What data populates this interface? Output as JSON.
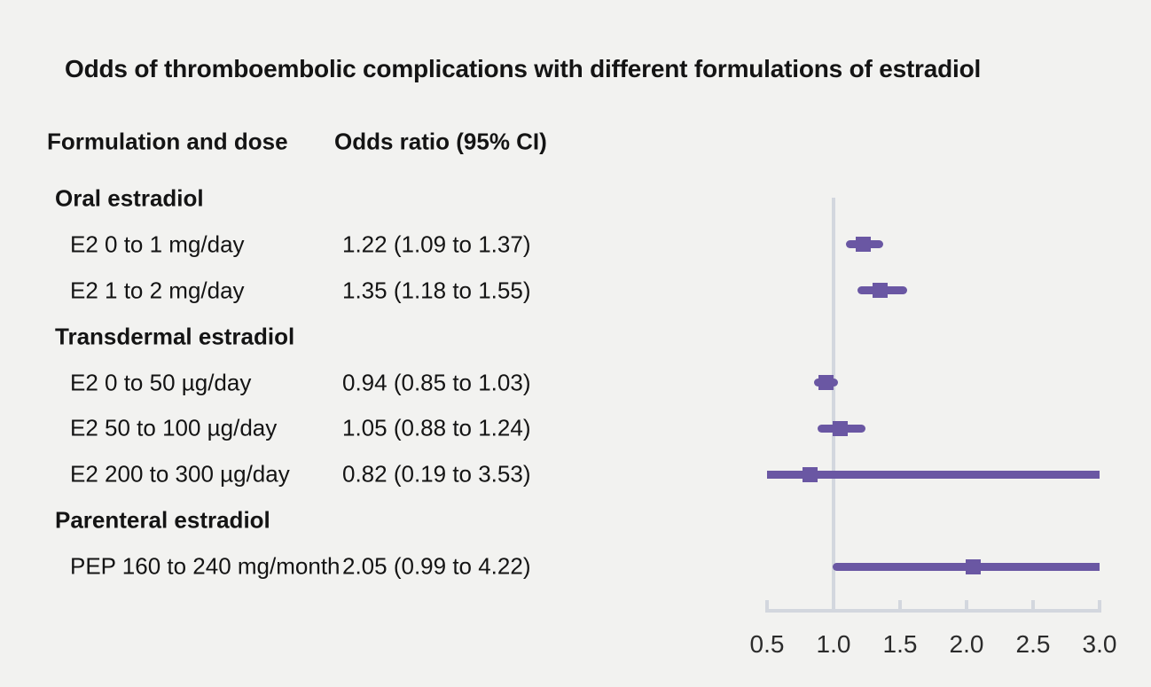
{
  "title": "Odds of thromboembolic complications with different formulations of estradiol",
  "columns": {
    "formulation": "Formulation and dose",
    "odds": "Odds ratio (95% CI)"
  },
  "colors": {
    "background": "#f2f2f0",
    "marker_purple": "#6a57a3",
    "axis_gray": "#d3d7de",
    "text": "#141414"
  },
  "chart_data": {
    "type": "forest",
    "title": "Odds of thromboembolic complications with different formulations of estradiol",
    "xlabel": "",
    "ylabel": "",
    "x_axis": {
      "min": 0.5,
      "max": 3.0,
      "tick_values": [
        0.5,
        1.0,
        1.5,
        2.0,
        2.5,
        3.0
      ],
      "tick_labels": [
        "0.5",
        "1.0",
        "1.5",
        "2.0",
        "2.5",
        "3.0"
      ],
      "reference_line": 1.0
    },
    "rows": [
      {
        "kind": "group",
        "label": "Oral estradiol"
      },
      {
        "kind": "item",
        "label": "E2 0 to 1 mg/day",
        "estimate_text": "1.22 (1.09 to 1.37)",
        "or": 1.22,
        "ci_low": 1.09,
        "ci_high": 1.37
      },
      {
        "kind": "item",
        "label": "E2 1 to 2 mg/day",
        "estimate_text": "1.35 (1.18 to 1.55)",
        "or": 1.35,
        "ci_low": 1.18,
        "ci_high": 1.55
      },
      {
        "kind": "group",
        "label": "Transdermal estradiol"
      },
      {
        "kind": "item",
        "label": "E2 0 to 50 µg/day",
        "estimate_text": "0.94 (0.85 to 1.03)",
        "or": 0.94,
        "ci_low": 0.85,
        "ci_high": 1.03
      },
      {
        "kind": "item",
        "label": "E2 50 to 100 µg/day",
        "estimate_text": "1.05 (0.88 to 1.24)",
        "or": 1.05,
        "ci_low": 0.88,
        "ci_high": 1.24
      },
      {
        "kind": "item",
        "label": "E2 200 to 300 µg/day",
        "estimate_text": "0.82 (0.19 to 3.53)",
        "or": 0.82,
        "ci_low": 0.19,
        "ci_high": 3.53
      },
      {
        "kind": "group",
        "label": "Parenteral estradiol"
      },
      {
        "kind": "item",
        "label": "PEP 160 to 240 mg/month",
        "estimate_text": "2.05 (0.99 to 4.22)",
        "or": 2.05,
        "ci_low": 0.99,
        "ci_high": 4.22
      }
    ]
  }
}
